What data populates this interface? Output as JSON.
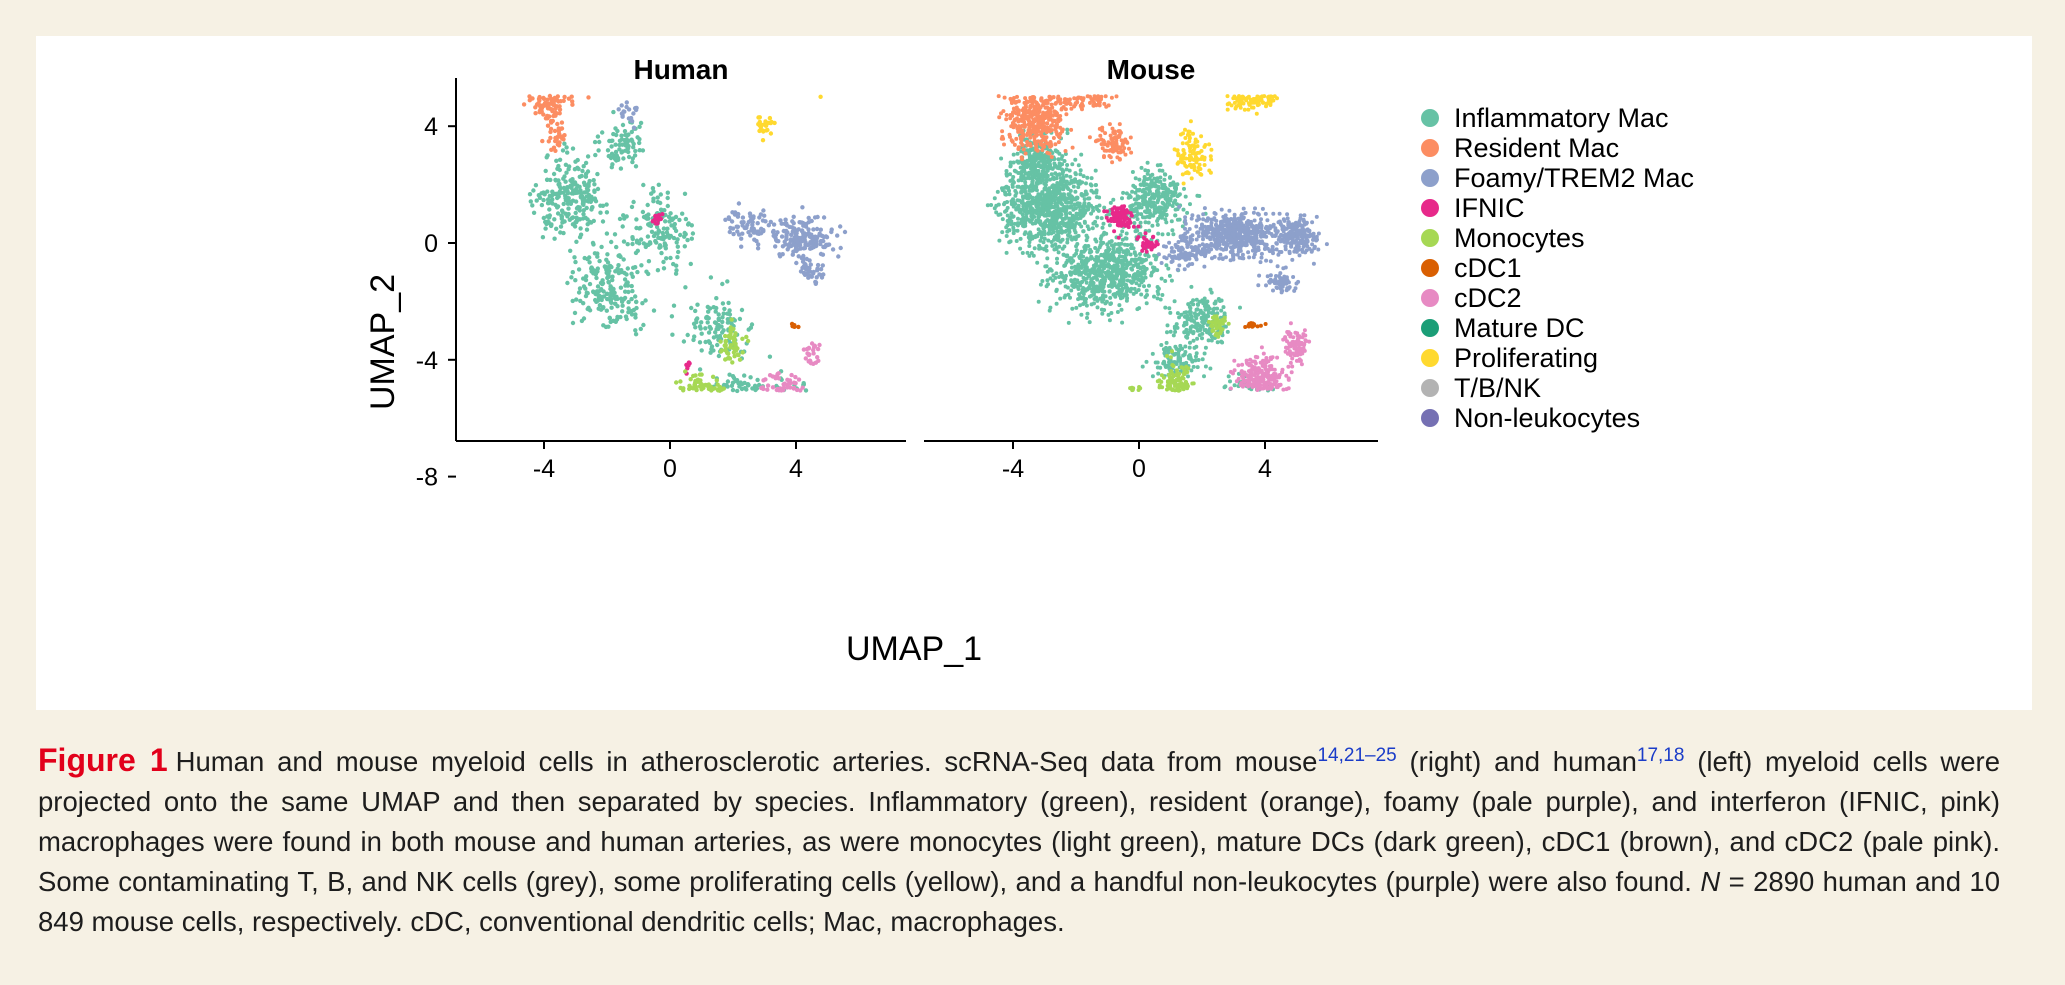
{
  "chart_data": {
    "type": "scatter",
    "x_axis_label": "UMAP_1",
    "y_axis_label": "UMAP_2",
    "x_ticks": [
      -4,
      0,
      4
    ],
    "x_tick_labels": [
      "-4",
      "0",
      "4"
    ],
    "y_ticks": [
      4,
      0,
      -4,
      -8
    ],
    "y_tick_labels": [
      "4",
      "0",
      "-4",
      "-8"
    ],
    "xlim": [
      -6.5,
      7.5
    ],
    "ylim": [
      -8.8,
      7.0
    ],
    "panels": [
      {
        "title": "Human",
        "total_cells": "2890"
      },
      {
        "title": "Mouse",
        "total_cells": "10 849"
      }
    ],
    "legend_position": "right",
    "series": [
      {
        "name": "Inflammatory Mac",
        "color": "#66c2a5"
      },
      {
        "name": "Resident Mac",
        "color": "#fc8d62"
      },
      {
        "name": "Foamy/TREM2 Mac",
        "color": "#8da0cb"
      },
      {
        "name": "IFNIC",
        "color": "#e7298a"
      },
      {
        "name": "Monocytes",
        "color": "#a6d854"
      },
      {
        "name": "cDC1",
        "color": "#d95f02"
      },
      {
        "name": "cDC2",
        "color": "#e78ac3"
      },
      {
        "name": "Mature DC",
        "color": "#1b9e77"
      },
      {
        "name": "Proliferating",
        "color": "#ffd92f"
      },
      {
        "name": "T/B/NK",
        "color": "#b3b3b3"
      },
      {
        "name": "Non-leukocytes",
        "color": "#7570b3"
      }
    ]
  },
  "caption": {
    "figure_label": "Figure 1",
    "text_1": "Human and mouse myeloid cells in atherosclerotic arteries. scRNA-Seq data from mouse",
    "ref_1": "14,21–25",
    "text_2": " (right) and human",
    "ref_2": "17,18",
    "text_3": " (left) myeloid cells were projected onto the same UMAP and then separated by species. Inflammatory (green), resident (orange), foamy (pale purple), and interferon (IFNIC, pink) macrophages were found in both mouse and human arteries, as were monocytes (light green), mature DCs (dark green), cDC1 (brown), and cDC2 (pale pink). Some contaminating T, B, and NK cells (grey), some proliferating cells (yellow), and a handful non-leukocytes (purple) were also found. ",
    "n_symbol": "N",
    "text_4": " = 2890 human and 10 849 mouse cells, respectively. cDC, conventional dendritic cells; Mac, macrophages."
  }
}
